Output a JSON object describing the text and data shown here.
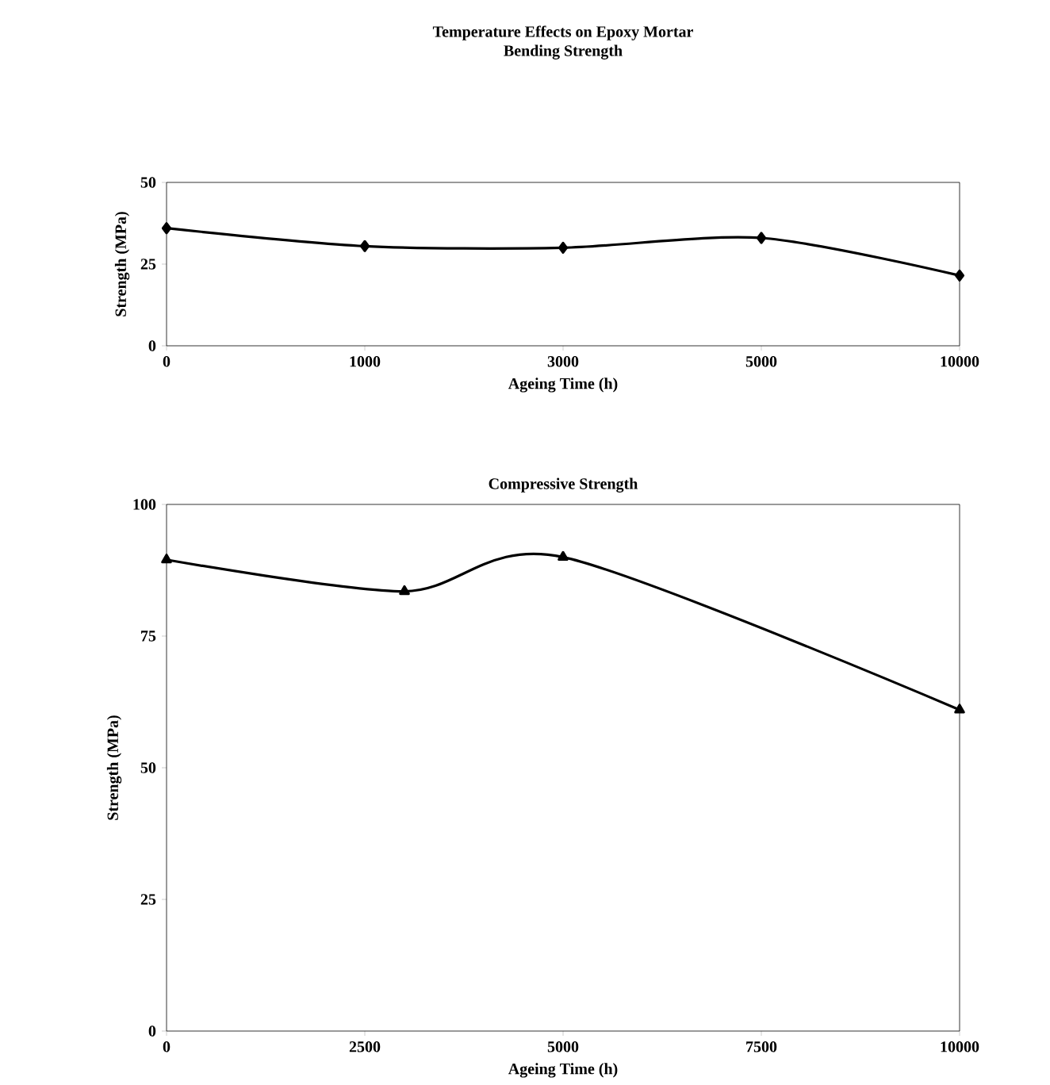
{
  "chart_data": [
    {
      "type": "line",
      "title": "Temperature Effects on Epoxy Mortar",
      "subtitle": "Bending Strength",
      "xlabel": "Ageing Time (h)",
      "ylabel": "Strength (MPa)",
      "categories": [
        "0",
        "1000",
        "3000",
        "5000",
        "10000"
      ],
      "series": [
        {
          "color": "#000000",
          "values": [
            36,
            30.5,
            30,
            33,
            21.5
          ]
        }
      ],
      "ylim": [
        0,
        50
      ],
      "yticks": [
        0,
        25,
        50
      ],
      "marker": "diamond",
      "line_style": "solid",
      "grid": false
    },
    {
      "type": "line",
      "title": "Compressive Strength",
      "xlabel": "Ageing Time (h)",
      "ylabel": "Strength (MPa)",
      "x": [
        0,
        3000,
        5000,
        10000
      ],
      "series": [
        {
          "color": "#000000",
          "values": [
            89.5,
            83.5,
            90,
            61
          ]
        }
      ],
      "xlim": [
        0,
        10000
      ],
      "xticks": [
        0,
        2500,
        5000,
        7500,
        10000
      ],
      "ylim": [
        0,
        100
      ],
      "yticks": [
        0,
        25,
        50,
        75,
        100
      ],
      "marker": "triangle",
      "line_style": "solid",
      "grid": false
    }
  ]
}
